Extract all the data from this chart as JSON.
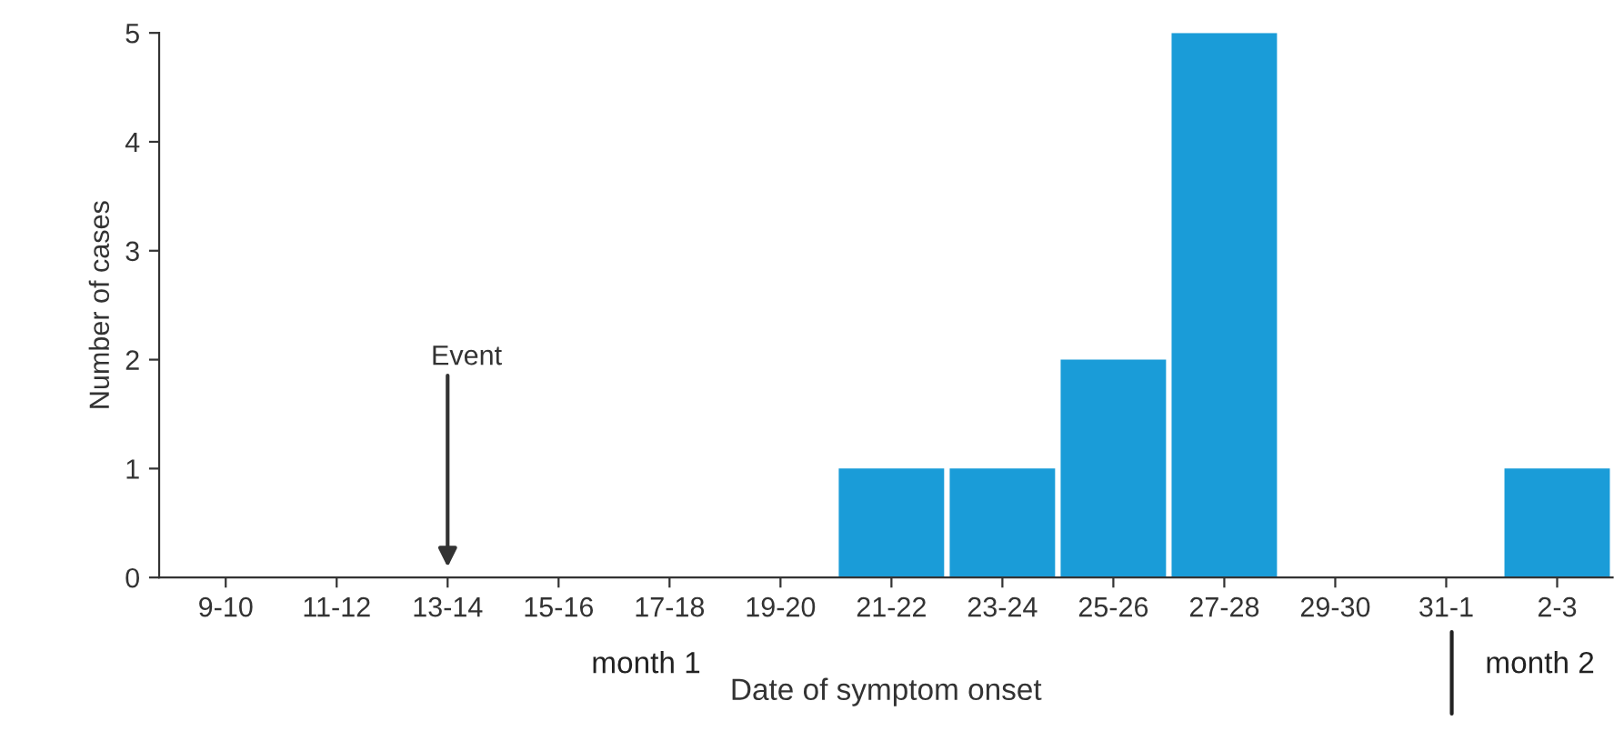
{
  "chart_data": {
    "type": "bar",
    "xlabel": "Date of symptom onset",
    "ylabel": "Number of cases",
    "categories": [
      "9-10",
      "11-12",
      "13-14",
      "15-16",
      "17-18",
      "19-20",
      "21-22",
      "23-24",
      "25-26",
      "27-28",
      "29-30",
      "31-1",
      "2-3"
    ],
    "values": [
      0,
      0,
      0,
      0,
      0,
      0,
      1,
      1,
      2,
      5,
      0,
      0,
      1
    ],
    "color": "#1a9cd8",
    "ylim": [
      0,
      5
    ],
    "yticks": [
      0,
      1,
      2,
      3,
      4,
      5
    ],
    "grid": false,
    "legend": false,
    "annotations": [
      {
        "text": "Event",
        "x": "13-14",
        "y": 0
      },
      "month 1",
      "month 2"
    ]
  }
}
